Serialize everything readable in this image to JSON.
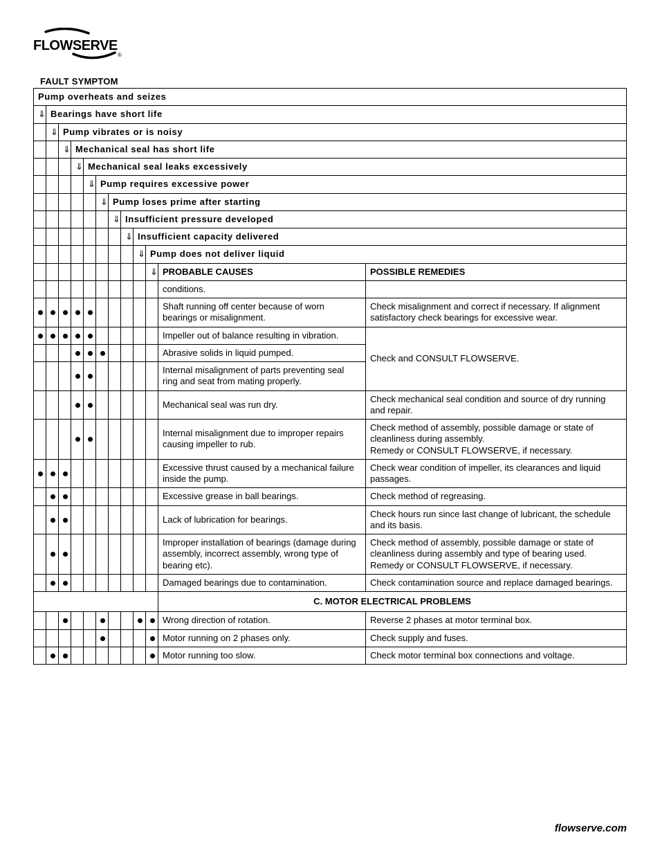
{
  "brand": "FLOWSERVE",
  "section_title": "FAULT SYMPTOM",
  "footer": "flowserve.com",
  "arrow_glyph": "⇓",
  "symptom_headers": [
    "Pump overheats and seizes",
    "Bearings have short life",
    "Pump vibrates or is noisy",
    "Mechanical seal has short life",
    "Mechanical seal leaks excessively",
    "Pump requires excessive power",
    "Pump loses prime after starting",
    "Insufficient pressure developed",
    "Insufficient capacity delivered",
    "Pump does not deliver liquid"
  ],
  "column_headers": {
    "causes": "PROBABLE CAUSES",
    "remedies": "POSSIBLE REMEDIES"
  },
  "section_c_title": "C.  MOTOR ELECTRICAL PROBLEMS",
  "rows": [
    {
      "dots": [
        0,
        0,
        0,
        0,
        0,
        0,
        0,
        0,
        0,
        0
      ],
      "cause": "conditions.",
      "remedy": ""
    },
    {
      "dots": [
        1,
        1,
        1,
        1,
        1,
        0,
        0,
        0,
        0,
        0
      ],
      "cause": "Shaft running off center because of worn bearings or misalignment.",
      "remedy": "Check misalignment and correct if necessary.  If alignment satisfactory check bearings for excessive wear."
    },
    {
      "dots": [
        1,
        1,
        1,
        1,
        1,
        0,
        0,
        0,
        0,
        0
      ],
      "cause": "Impeller out of balance resulting in vibration.",
      "remedy_group": "A"
    },
    {
      "dots": [
        0,
        0,
        0,
        1,
        1,
        1,
        0,
        0,
        0,
        0
      ],
      "cause": "Abrasive solids in liquid pumped.",
      "remedy_group": "A"
    },
    {
      "dots": [
        0,
        0,
        0,
        1,
        1,
        0,
        0,
        0,
        0,
        0
      ],
      "cause": "Internal misalignment of parts preventing seal ring and seat from mating properly.",
      "remedy_group": "A"
    },
    {
      "dots": [
        0,
        0,
        0,
        1,
        1,
        0,
        0,
        0,
        0,
        0
      ],
      "cause": "Mechanical seal was run dry.",
      "remedy": "Check mechanical seal condition and source of dry running and repair."
    },
    {
      "dots": [
        0,
        0,
        0,
        1,
        1,
        0,
        0,
        0,
        0,
        0
      ],
      "cause": "Internal misalignment due to improper repairs causing impeller to rub.",
      "remedy": "Check method of assembly, possible damage or state of cleanliness during assembly.\nRemedy or CONSULT FLOWSERVE, if necessary."
    },
    {
      "dots": [
        1,
        1,
        1,
        0,
        0,
        0,
        0,
        0,
        0,
        0
      ],
      "cause": "Excessive thrust caused by a mechanical failure inside the pump.",
      "remedy": "Check wear condition of impeller, its clearances and liquid passages."
    },
    {
      "dots": [
        0,
        1,
        1,
        0,
        0,
        0,
        0,
        0,
        0,
        0
      ],
      "cause": "Excessive grease in ball bearings.",
      "remedy": "Check method of regreasing."
    },
    {
      "dots": [
        0,
        1,
        1,
        0,
        0,
        0,
        0,
        0,
        0,
        0
      ],
      "cause": "Lack of lubrication for bearings.",
      "remedy": "Check hours run since last change of lubricant, the schedule and its basis."
    },
    {
      "dots": [
        0,
        1,
        1,
        0,
        0,
        0,
        0,
        0,
        0,
        0
      ],
      "cause": "Improper installation of bearings (damage during assembly, incorrect assembly, wrong type of bearing etc).",
      "remedy": "Check method of assembly, possible damage or state of cleanliness during assembly and type of bearing used.  Remedy or CONSULT FLOWSERVE, if necessary."
    },
    {
      "dots": [
        0,
        1,
        1,
        0,
        0,
        0,
        0,
        0,
        0,
        0
      ],
      "cause": "Damaged bearings due to contamination.",
      "remedy": "Check contamination source and replace damaged bearings."
    }
  ],
  "group_remedy_A": "Check and CONSULT FLOWSERVE.",
  "section_c_rows": [
    {
      "dots": [
        0,
        0,
        1,
        0,
        0,
        1,
        0,
        0,
        1,
        1
      ],
      "cause": "Wrong direction of rotation.",
      "remedy": "Reverse 2 phases at motor terminal box."
    },
    {
      "dots": [
        0,
        0,
        0,
        0,
        0,
        1,
        0,
        0,
        0,
        1
      ],
      "cause": "Motor running on 2 phases only.",
      "remedy": "Check supply and fuses."
    },
    {
      "dots": [
        0,
        1,
        1,
        0,
        0,
        0,
        0,
        0,
        0,
        1
      ],
      "cause": "Motor running too slow.",
      "remedy": "Check motor terminal box connections and voltage."
    }
  ]
}
